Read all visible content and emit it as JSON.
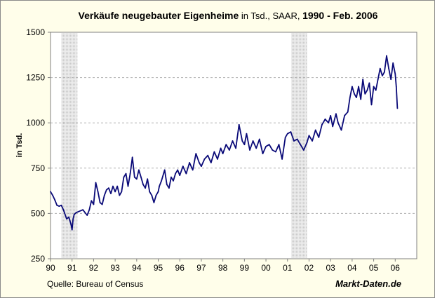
{
  "chart_data": {
    "type": "line",
    "title_parts": [
      {
        "text": "Verkäufe neugebauter Eigenheime",
        "bold": true
      },
      {
        "text": " in Tsd., SAAR, ",
        "bold": false
      },
      {
        "text": "1990 - Feb. 2006",
        "bold": true
      }
    ],
    "ylabel": "in Tsd.",
    "xlabel": "",
    "source": "Quelle: Bureau of Census",
    "brand": "Markt-Daten.de",
    "ylim": [
      250,
      1500
    ],
    "yticks": [
      250,
      500,
      750,
      1000,
      1250,
      1500
    ],
    "xlim": [
      1990,
      2007
    ],
    "xticks": [
      {
        "value": 1990,
        "label": "90"
      },
      {
        "value": 1991,
        "label": "91"
      },
      {
        "value": 1992,
        "label": "92"
      },
      {
        "value": 1993,
        "label": "93"
      },
      {
        "value": 1994,
        "label": "94"
      },
      {
        "value": 1995,
        "label": "95"
      },
      {
        "value": 1996,
        "label": "96"
      },
      {
        "value": 1997,
        "label": "97"
      },
      {
        "value": 1998,
        "label": "98"
      },
      {
        "value": 1999,
        "label": "99"
      },
      {
        "value": 2000,
        "label": "00"
      },
      {
        "value": 2001,
        "label": "01"
      },
      {
        "value": 2002,
        "label": "02"
      },
      {
        "value": 2003,
        "label": "03"
      },
      {
        "value": 2004,
        "label": "04"
      },
      {
        "value": 2005,
        "label": "05"
      },
      {
        "value": 2006,
        "label": "06"
      }
    ],
    "grid": true,
    "recessions": [
      [
        1990.5,
        1991.25
      ],
      [
        2001.17,
        2001.92
      ]
    ],
    "colors": {
      "line": "#0a0a78",
      "grid": "#b0b0b0",
      "recession": "#d8d8d8",
      "plot_bg": "#ffffff"
    },
    "series": [
      {
        "x": [
          1990.0,
          1990.1,
          1990.2,
          1990.3,
          1990.4,
          1990.5,
          1990.6,
          1990.75,
          1990.85,
          1990.95,
          1991.0,
          1991.05,
          1991.1,
          1991.2,
          1991.3,
          1991.5,
          1991.7,
          1991.8,
          1991.9,
          1992.0,
          1992.1,
          1992.2,
          1992.3,
          1992.4,
          1992.5,
          1992.6,
          1992.7,
          1992.8,
          1992.9,
          1993.0,
          1993.1,
          1993.2,
          1993.3,
          1993.4,
          1993.5,
          1993.6,
          1993.7,
          1993.8,
          1993.9,
          1994.0,
          1994.1,
          1994.2,
          1994.3,
          1994.4,
          1994.5,
          1994.6,
          1994.7,
          1994.8,
          1994.9,
          1995.0,
          1995.05,
          1995.15,
          1995.3,
          1995.4,
          1995.5,
          1995.6,
          1995.7,
          1995.8,
          1995.9,
          1996.0,
          1996.15,
          1996.3,
          1996.45,
          1996.6,
          1996.75,
          1996.9,
          1997.0,
          1997.15,
          1997.3,
          1997.45,
          1997.6,
          1997.75,
          1997.9,
          1998.0,
          1998.15,
          1998.3,
          1998.45,
          1998.6,
          1998.75,
          1998.9,
          1999.0,
          1999.1,
          1999.25,
          1999.4,
          1999.55,
          1999.7,
          1999.85,
          2000.0,
          2000.15,
          2000.3,
          2000.45,
          2000.6,
          2000.75,
          2000.9,
          2001.0,
          2001.15,
          2001.3,
          2001.45,
          2001.6,
          2001.75,
          2001.9,
          2002.0,
          2002.15,
          2002.3,
          2002.45,
          2002.6,
          2002.75,
          2002.9,
          2003.0,
          2003.1,
          2003.25,
          2003.35,
          2003.5,
          2003.65,
          2003.8,
          2003.9,
          2004.0,
          2004.1,
          2004.2,
          2004.3,
          2004.4,
          2004.5,
          2004.6,
          2004.7,
          2004.8,
          2004.9,
          2005.0,
          2005.1,
          2005.2,
          2005.3,
          2005.4,
          2005.5,
          2005.6,
          2005.7,
          2005.8,
          2005.9,
          2006.0,
          2006.05,
          2006.1
        ],
        "y": [
          620,
          600,
          575,
          545,
          540,
          545,
          520,
          470,
          480,
          440,
          410,
          470,
          495,
          505,
          510,
          520,
          490,
          520,
          570,
          550,
          670,
          620,
          560,
          550,
          600,
          630,
          640,
          610,
          650,
          620,
          650,
          600,
          620,
          700,
          720,
          650,
          720,
          810,
          700,
          690,
          740,
          700,
          660,
          640,
          690,
          620,
          600,
          560,
          600,
          620,
          650,
          680,
          740,
          660,
          640,
          700,
          680,
          720,
          740,
          710,
          760,
          720,
          780,
          740,
          830,
          780,
          760,
          800,
          820,
          780,
          840,
          800,
          860,
          830,
          880,
          850,
          900,
          860,
          990,
          900,
          880,
          940,
          850,
          900,
          860,
          910,
          830,
          870,
          880,
          850,
          840,
          880,
          800,
          920,
          940,
          950,
          900,
          910,
          880,
          850,
          890,
          930,
          900,
          960,
          920,
          990,
          1020,
          1000,
          1040,
          980,
          1050,
          1000,
          960,
          1040,
          1060,
          1140,
          1200,
          1160,
          1140,
          1200,
          1130,
          1240,
          1160,
          1180,
          1220,
          1100,
          1200,
          1180,
          1240,
          1300,
          1260,
          1280,
          1370,
          1300,
          1240,
          1330,
          1270,
          1200,
          1080
        ]
      }
    ]
  }
}
